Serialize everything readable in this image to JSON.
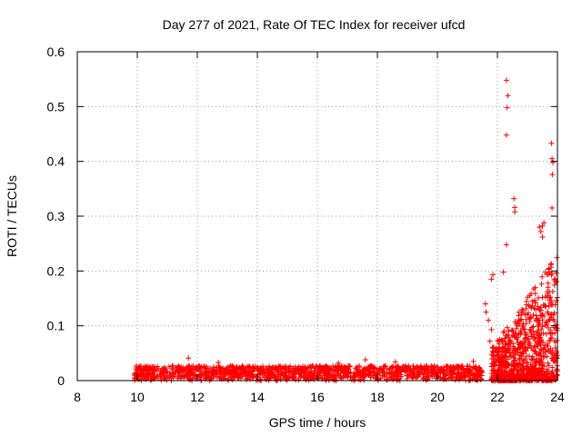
{
  "chart_data": {
    "type": "scatter",
    "title": "Day 277 of 2021, Rate Of TEC Index for receiver ufcd",
    "xlabel": "GPS time / hours",
    "ylabel": "ROTI / TECUs",
    "xlim": [
      8,
      24
    ],
    "ylim": [
      0,
      0.6
    ],
    "xticks": [
      "8",
      "10",
      "12",
      "14",
      "16",
      "18",
      "20",
      "22",
      "24"
    ],
    "yticks": [
      "0",
      "0.1",
      "0.2",
      "0.3",
      "0.4",
      "0.5",
      "0.6"
    ],
    "grid": true,
    "marker": "+",
    "color": "#ff0000",
    "series": [
      {
        "name": "ROTI",
        "baseline": {
          "x_range": [
            9.9,
            21.5
          ],
          "y_range": [
            0.0,
            0.03
          ],
          "note": "dense band of points"
        },
        "bumps": [
          {
            "x": 11.7,
            "y": 0.041
          },
          {
            "x": 12.7,
            "y": 0.033
          },
          {
            "x": 16.7,
            "y": 0.032
          },
          {
            "x": 17.6,
            "y": 0.038
          },
          {
            "x": 18.6,
            "y": 0.034
          },
          {
            "x": 21.2,
            "y": 0.035
          }
        ],
        "outliers": [
          {
            "x": 22.3,
            "y": 0.548
          },
          {
            "x": 22.35,
            "y": 0.52
          },
          {
            "x": 22.32,
            "y": 0.498
          },
          {
            "x": 22.3,
            "y": 0.448
          },
          {
            "x": 22.3,
            "y": 0.248
          },
          {
            "x": 22.55,
            "y": 0.332
          },
          {
            "x": 22.58,
            "y": 0.316
          },
          {
            "x": 22.58,
            "y": 0.308
          },
          {
            "x": 23.8,
            "y": 0.433
          },
          {
            "x": 23.82,
            "y": 0.405
          },
          {
            "x": 23.85,
            "y": 0.398
          },
          {
            "x": 23.83,
            "y": 0.376
          },
          {
            "x": 23.82,
            "y": 0.315
          },
          {
            "x": 23.55,
            "y": 0.288
          },
          {
            "x": 23.5,
            "y": 0.282
          },
          {
            "x": 23.4,
            "y": 0.28
          },
          {
            "x": 23.45,
            "y": 0.272
          },
          {
            "x": 23.5,
            "y": 0.262
          },
          {
            "x": 21.85,
            "y": 0.193
          },
          {
            "x": 21.8,
            "y": 0.185
          },
          {
            "x": 22.2,
            "y": 0.198
          },
          {
            "x": 21.6,
            "y": 0.14
          },
          {
            "x": 21.62,
            "y": 0.125
          },
          {
            "x": 21.7,
            "y": 0.11
          },
          {
            "x": 21.8,
            "y": 0.093
          },
          {
            "x": 21.75,
            "y": 0.072
          }
        ],
        "cluster": {
          "x_range": [
            21.8,
            24.0
          ],
          "y_range": [
            0.0,
            0.23
          ],
          "note": "scattered increasing activity"
        }
      }
    ]
  }
}
